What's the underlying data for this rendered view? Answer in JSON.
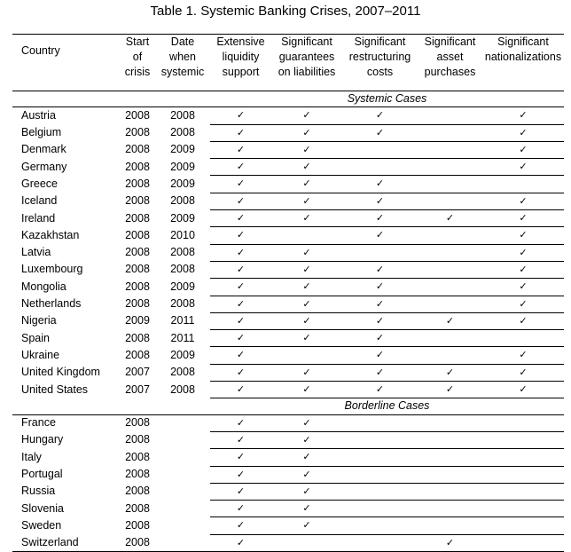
{
  "title": "Table 1. Systemic Banking Crises, 2007–2011",
  "headers": [
    "Country",
    "Start of crisis",
    "Date when systemic",
    "Extensive liquidity support",
    "Significant guarantees on liabilities",
    "Significant restructuring costs",
    "Significant asset purchases",
    "Significant nationalizations"
  ],
  "header_lines": [
    [
      "Country"
    ],
    [
      "Start",
      "of",
      "crisis"
    ],
    [
      "Date",
      "when",
      "systemic"
    ],
    [
      "Extensive",
      "liquidity",
      "support"
    ],
    [
      "Significant",
      "guarantees",
      "on liabilities"
    ],
    [
      "Significant",
      "restructuring",
      "costs"
    ],
    [
      "Significant",
      "asset",
      "purchases"
    ],
    [
      "Significant",
      "nationalizations"
    ]
  ],
  "check_mark": "✓",
  "sections": [
    {
      "label": "Systemic Cases",
      "rows": [
        {
          "country": "Austria",
          "start": "2008",
          "systemic": "2008",
          "checks": [
            1,
            1,
            1,
            0,
            1
          ]
        },
        {
          "country": "Belgium",
          "start": "2008",
          "systemic": "2008",
          "checks": [
            1,
            1,
            1,
            0,
            1
          ]
        },
        {
          "country": "Denmark",
          "start": "2008",
          "systemic": "2009",
          "checks": [
            1,
            1,
            0,
            0,
            1
          ]
        },
        {
          "country": "Germany",
          "start": "2008",
          "systemic": "2009",
          "checks": [
            1,
            1,
            0,
            0,
            1
          ]
        },
        {
          "country": "Greece",
          "start": "2008",
          "systemic": "2009",
          "checks": [
            1,
            1,
            1,
            0,
            0
          ]
        },
        {
          "country": "Iceland",
          "start": "2008",
          "systemic": "2008",
          "checks": [
            1,
            1,
            1,
            0,
            1
          ]
        },
        {
          "country": "Ireland",
          "start": "2008",
          "systemic": "2009",
          "checks": [
            1,
            1,
            1,
            1,
            1
          ]
        },
        {
          "country": "Kazakhstan",
          "start": "2008",
          "systemic": "2010",
          "checks": [
            1,
            0,
            1,
            0,
            1
          ]
        },
        {
          "country": "Latvia",
          "start": "2008",
          "systemic": "2008",
          "checks": [
            1,
            1,
            0,
            0,
            1
          ]
        },
        {
          "country": "Luxembourg",
          "start": "2008",
          "systemic": "2008",
          "checks": [
            1,
            1,
            1,
            0,
            1
          ]
        },
        {
          "country": "Mongolia",
          "start": "2008",
          "systemic": "2009",
          "checks": [
            1,
            1,
            1,
            0,
            1
          ]
        },
        {
          "country": "Netherlands",
          "start": "2008",
          "systemic": "2008",
          "checks": [
            1,
            1,
            1,
            0,
            1
          ]
        },
        {
          "country": "Nigeria",
          "start": "2009",
          "systemic": "2011",
          "checks": [
            1,
            1,
            1,
            1,
            1
          ]
        },
        {
          "country": "Spain",
          "start": "2008",
          "systemic": "2011",
          "checks": [
            1,
            1,
            1,
            0,
            0
          ]
        },
        {
          "country": "Ukraine",
          "start": "2008",
          "systemic": "2009",
          "checks": [
            1,
            0,
            1,
            0,
            1
          ]
        },
        {
          "country": "United Kingdom",
          "start": "2007",
          "systemic": "2008",
          "checks": [
            1,
            1,
            1,
            1,
            1
          ]
        },
        {
          "country": "United States",
          "start": "2007",
          "systemic": "2008",
          "checks": [
            1,
            1,
            1,
            1,
            1
          ]
        }
      ]
    },
    {
      "label": "Borderline Cases",
      "rows": [
        {
          "country": "France",
          "start": "2008",
          "systemic": "",
          "checks": [
            1,
            1,
            0,
            0,
            0
          ]
        },
        {
          "country": "Hungary",
          "start": "2008",
          "systemic": "",
          "checks": [
            1,
            1,
            0,
            0,
            0
          ]
        },
        {
          "country": "Italy",
          "start": "2008",
          "systemic": "",
          "checks": [
            1,
            1,
            0,
            0,
            0
          ]
        },
        {
          "country": "Portugal",
          "start": "2008",
          "systemic": "",
          "checks": [
            1,
            1,
            0,
            0,
            0
          ]
        },
        {
          "country": "Russia",
          "start": "2008",
          "systemic": "",
          "checks": [
            1,
            1,
            0,
            0,
            0
          ]
        },
        {
          "country": "Slovenia",
          "start": "2008",
          "systemic": "",
          "checks": [
            1,
            1,
            0,
            0,
            0
          ]
        },
        {
          "country": "Sweden",
          "start": "2008",
          "systemic": "",
          "checks": [
            1,
            1,
            0,
            0,
            0
          ]
        },
        {
          "country": "Switzerland",
          "start": "2008",
          "systemic": "",
          "checks": [
            1,
            0,
            0,
            1,
            0
          ]
        }
      ]
    }
  ]
}
